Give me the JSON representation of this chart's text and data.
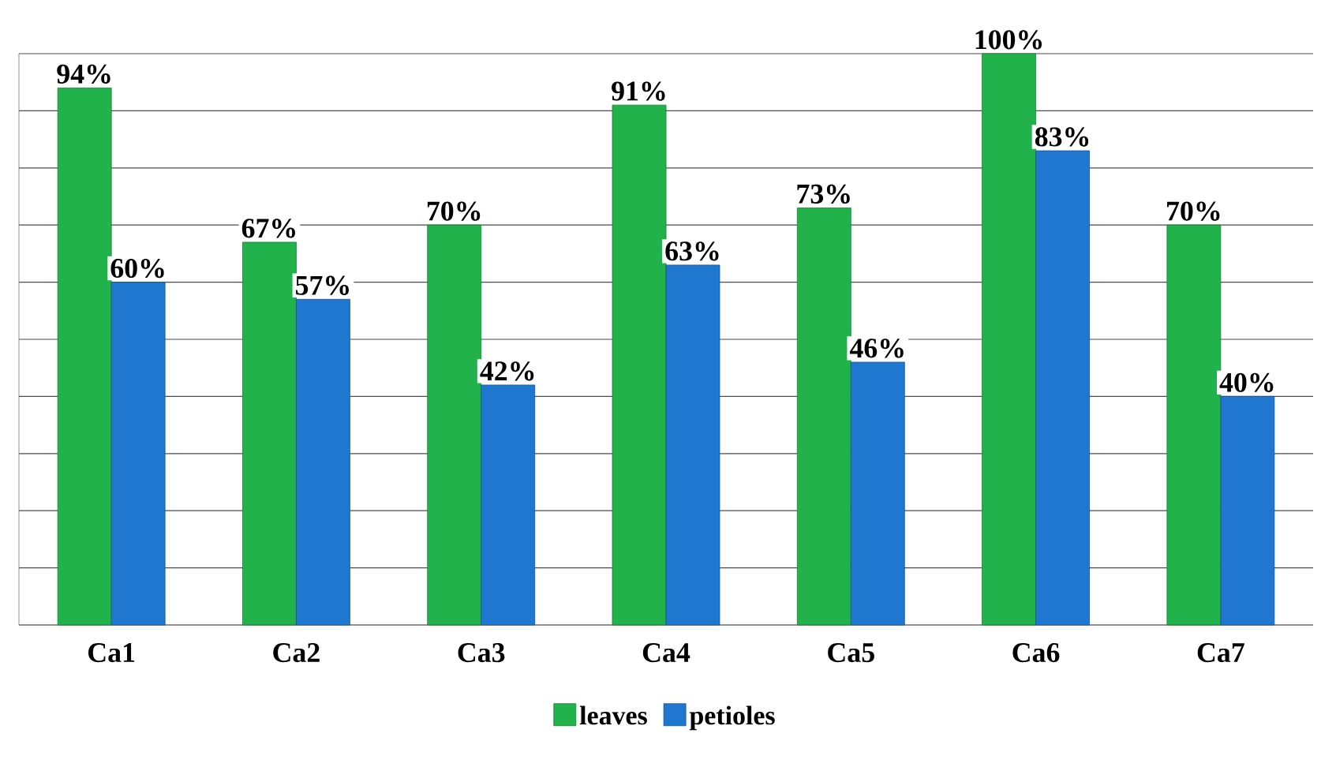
{
  "chart_data": {
    "type": "bar",
    "categories": [
      "Ca1",
      "Ca2",
      "Ca3",
      "Ca4",
      "Ca5",
      "Ca6",
      "Ca7"
    ],
    "series": [
      {
        "name": "leaves",
        "color": "#22b24c",
        "values": [
          94,
          67,
          70,
          91,
          73,
          100,
          70
        ],
        "value_labels": [
          "94%",
          "67%",
          "70%",
          "91%",
          "73%",
          "100%",
          "70%"
        ]
      },
      {
        "name": "petioles",
        "color": "#1f77d0",
        "values": [
          60,
          57,
          42,
          63,
          46,
          83,
          40
        ],
        "value_labels": [
          "60%",
          "57%",
          "42%",
          "63%",
          "46%",
          "83%",
          "40%"
        ]
      }
    ],
    "ylim": [
      0,
      100
    ],
    "yticks": [
      {
        "value": 0,
        "label": null
      },
      {
        "value": 10,
        "label": null
      },
      {
        "value": 20,
        "label": null
      },
      {
        "value": 30,
        "label": null
      },
      {
        "value": 40,
        "label": null
      },
      {
        "value": 50,
        "label": null
      },
      {
        "value": 60,
        "label": null
      },
      {
        "value": 70,
        "label": null
      },
      {
        "value": 80,
        "label": null
      },
      {
        "value": 90,
        "label": null
      },
      {
        "value": 100,
        "label": null
      }
    ],
    "grid": "y",
    "legend": "bottom",
    "tick_labels": "x"
  }
}
